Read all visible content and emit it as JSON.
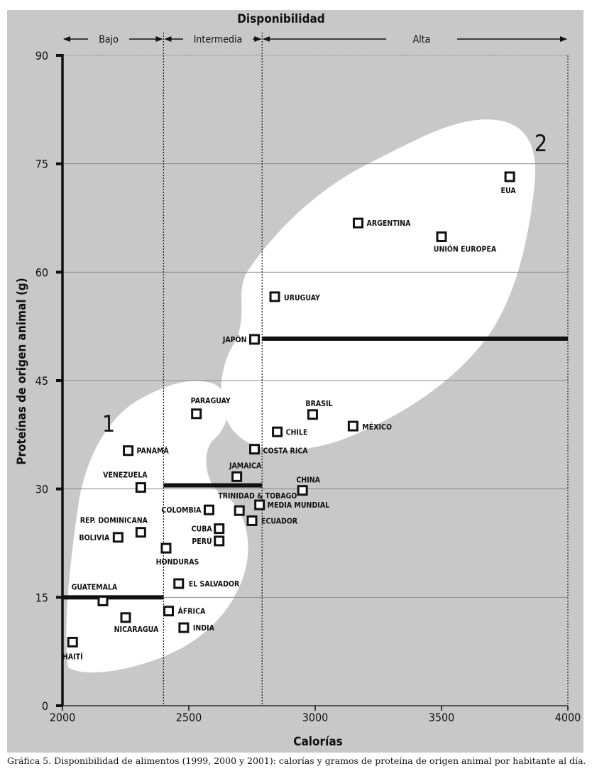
{
  "chart_data": {
    "type": "scatter",
    "title": "Disponibilidad",
    "xlabel": "Calorías",
    "ylabel": "Proteínas de origen animal (g)",
    "xlim": [
      2000,
      4000
    ],
    "ylim": [
      0,
      90
    ],
    "x_ticks": [
      2000,
      2500,
      3000,
      3500,
      4000
    ],
    "y_ticks": [
      0,
      15,
      30,
      45,
      60,
      75,
      90
    ],
    "grid": true,
    "band_labels": [
      "Bajo",
      "Intermedia",
      "Alta"
    ],
    "band_bounds": [
      2000,
      2400,
      2790,
      4000
    ],
    "group_labels": [
      "1",
      "2"
    ],
    "points": [
      {
        "label": "HAITÍ",
        "x": 2040,
        "y": 8.8
      },
      {
        "label": "NICARAGUA",
        "x": 2250,
        "y": 12.2
      },
      {
        "label": "GUATEMALA",
        "x": 2160,
        "y": 14.5
      },
      {
        "label": "BOLIVIA",
        "x": 2220,
        "y": 23.3
      },
      {
        "label": "REP. DOMINICANA",
        "x": 2310,
        "y": 24.0
      },
      {
        "label": "VENEZUELA",
        "x": 2310,
        "y": 30.2
      },
      {
        "label": "PANAMÁ",
        "x": 2260,
        "y": 35.3
      },
      {
        "label": "HONDURAS",
        "x": 2410,
        "y": 21.8
      },
      {
        "label": "ÁFRICA",
        "x": 2420,
        "y": 13.1
      },
      {
        "label": "INDIA",
        "x": 2480,
        "y": 10.8
      },
      {
        "label": "EL SALVADOR",
        "x": 2460,
        "y": 16.9
      },
      {
        "label": "COLOMBIA",
        "x": 2580,
        "y": 27.1
      },
      {
        "label": "CUBA",
        "x": 2620,
        "y": 24.5
      },
      {
        "label": "PERÚ",
        "x": 2620,
        "y": 22.8
      },
      {
        "label": "PARAGUAY",
        "x": 2530,
        "y": 40.4
      },
      {
        "label": "JAMAICA",
        "x": 2690,
        "y": 31.7
      },
      {
        "label": "TRINIDAD & TOBAGO",
        "x": 2700,
        "y": 27.0
      },
      {
        "label": "MEDIA MUNDIAL",
        "x": 2780,
        "y": 27.8
      },
      {
        "label": "ECUADOR",
        "x": 2750,
        "y": 25.6
      },
      {
        "label": "COSTA RICA",
        "x": 2760,
        "y": 35.5
      },
      {
        "label": "CHINA",
        "x": 2950,
        "y": 29.8
      },
      {
        "label": "CHILE",
        "x": 2850,
        "y": 37.9
      },
      {
        "label": "BRASIL",
        "x": 2990,
        "y": 40.3
      },
      {
        "label": "MÉXICO",
        "x": 3150,
        "y": 38.7
      },
      {
        "label": "JAPÓN",
        "x": 2760,
        "y": 50.7
      },
      {
        "label": "URUGUAY",
        "x": 2840,
        "y": 56.6
      },
      {
        "label": "ARGENTINA",
        "x": 3170,
        "y": 66.8
      },
      {
        "label": "UNIÓN EUROPEA",
        "x": 3500,
        "y": 64.9
      },
      {
        "label": "EUA",
        "x": 3770,
        "y": 73.2
      }
    ],
    "thresholds": [
      {
        "x_from": 2000,
        "x_to": 2400,
        "y": 15
      },
      {
        "x_from": 2400,
        "x_to": 2790,
        "y": 30.5
      },
      {
        "x_from": 2790,
        "x_to": 4000,
        "y": 50.8
      }
    ]
  },
  "caption": "Gráfica 5. Disponibilidad de alimentos (1999, 2000 y 2001): calorías y gramos de proteína de origen animal por habitante al día.",
  "colors": {
    "background": "#c8c8c8",
    "region": "#ffffff",
    "ink": "#111111",
    "grid": "#8a8a8a"
  }
}
